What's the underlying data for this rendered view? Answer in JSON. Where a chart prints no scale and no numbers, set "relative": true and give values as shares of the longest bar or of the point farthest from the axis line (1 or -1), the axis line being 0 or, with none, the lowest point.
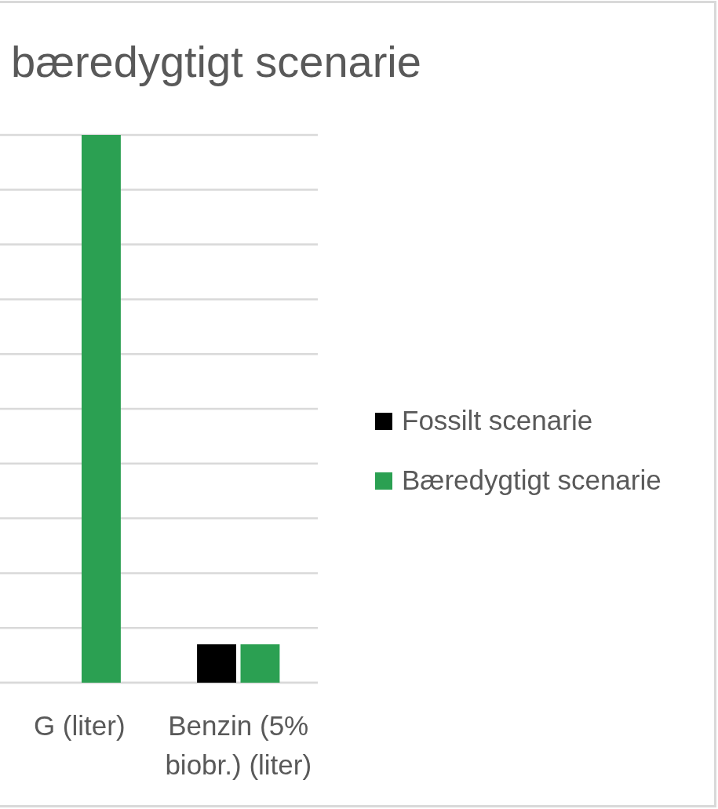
{
  "chart_data": {
    "type": "bar",
    "title": "bæredygtigt scenarie",
    "categories": [
      "G (liter)",
      "Benzin (5% biobr.) (liter)"
    ],
    "series": [
      {
        "name": "Fossilt scenarie",
        "color": "#000000",
        "values": [
          null,
          0.07
        ]
      },
      {
        "name": "Bæredygtigt scenarie",
        "color": "#2ba052",
        "values": [
          1,
          0.07
        ]
      }
    ],
    "relative": true,
    "grid": true,
    "legend": "right"
  }
}
